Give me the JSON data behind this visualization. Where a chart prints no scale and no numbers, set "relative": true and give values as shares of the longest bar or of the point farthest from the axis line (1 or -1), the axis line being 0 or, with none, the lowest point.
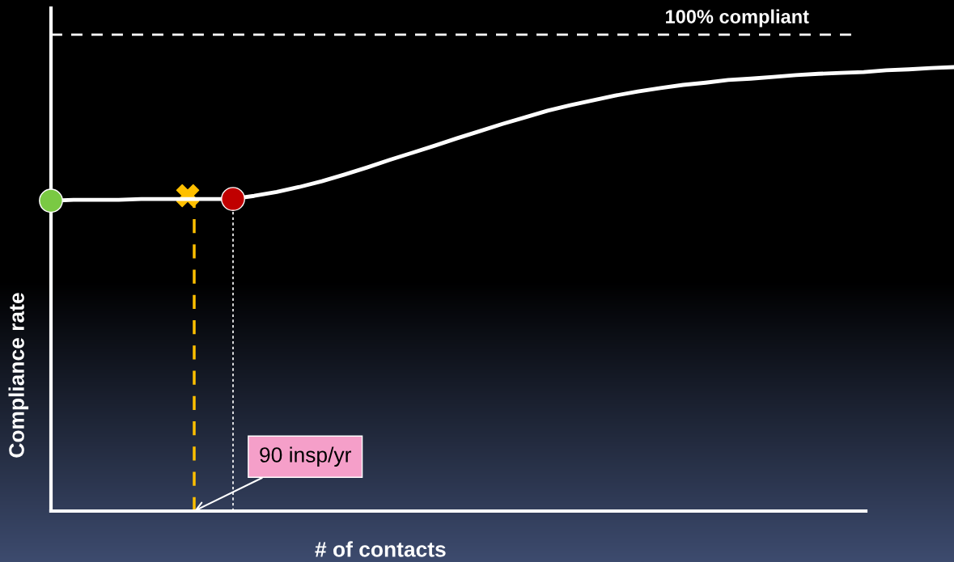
{
  "chart_data": {
    "type": "line",
    "relative": true,
    "xlabel": "# of contacts",
    "ylabel": "Compliance rate",
    "grid": false,
    "legend": false,
    "categories": [
      null,
      null,
      null,
      null,
      null,
      null,
      null,
      null,
      null,
      null,
      null,
      null,
      null,
      null,
      null,
      null,
      null,
      null,
      null,
      null,
      null,
      null,
      null,
      null,
      null,
      null,
      null,
      null,
      null,
      null,
      null,
      null,
      null,
      null,
      null,
      null,
      null,
      null,
      null,
      null,
      null
    ],
    "series": [
      {
        "color": "#ffffff",
        "values": [
          0.699,
          0.701,
          0.701,
          0.701,
          0.703,
          0.703,
          0.703,
          0.703,
          0.703,
          0.71,
          0.719,
          0.73,
          0.743,
          0.758,
          0.774,
          0.791,
          0.807,
          0.823,
          0.84,
          0.856,
          0.872,
          0.887,
          0.902,
          0.914,
          0.925,
          0.936,
          0.945,
          0.953,
          0.96,
          0.965,
          0.971,
          0.974,
          0.978,
          0.982,
          0.985,
          0.987,
          0.989,
          0.993,
          0.995,
          0.998,
          1.0
        ]
      }
    ],
    "annotations": [
      "100% compliant",
      "90 insp/yr"
    ]
  }
}
